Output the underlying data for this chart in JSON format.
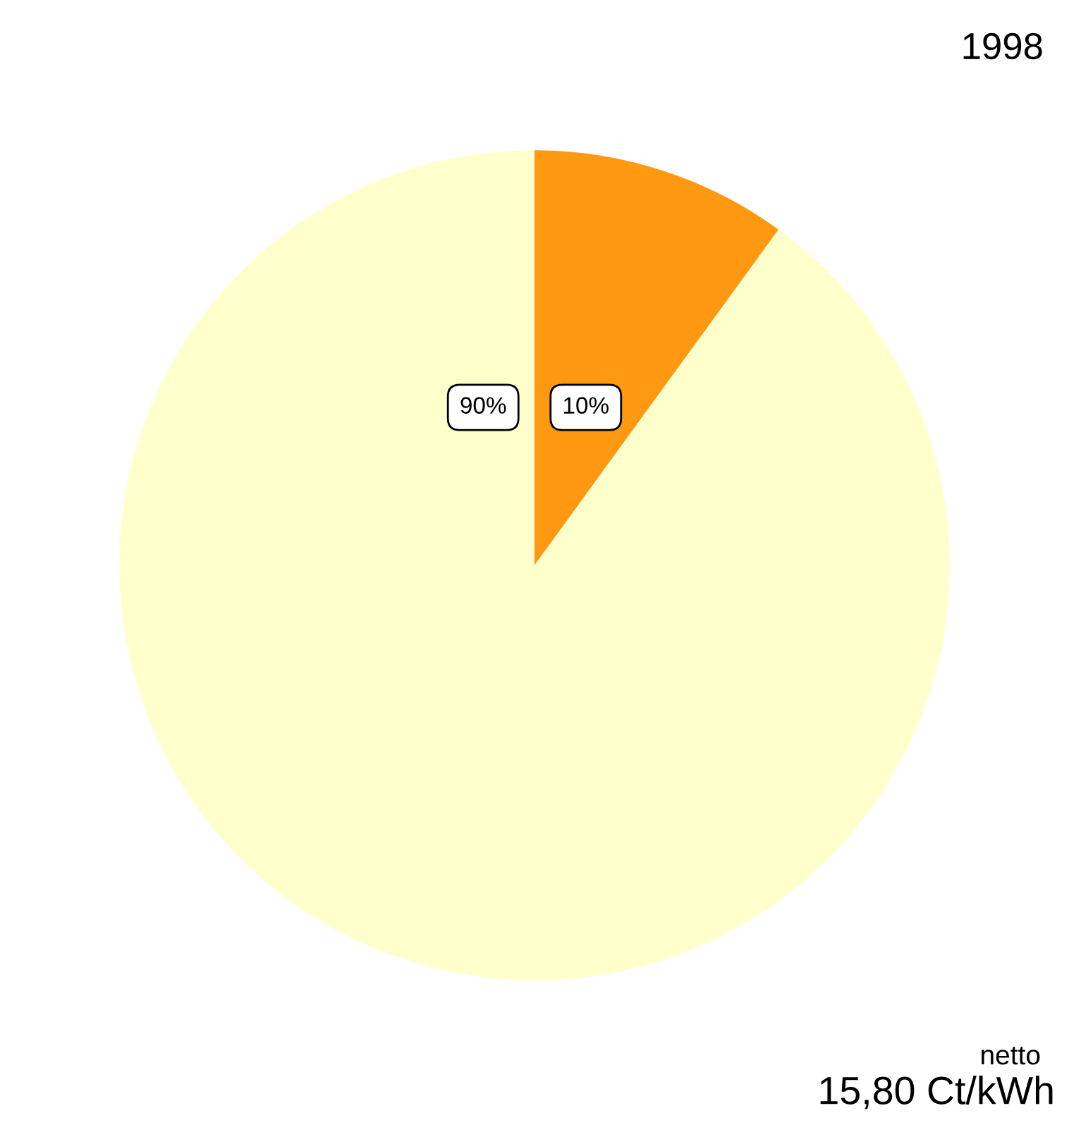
{
  "chart_data": {
    "type": "pie",
    "title": "1998",
    "categories": [
      null,
      null
    ],
    "values": [
      10,
      90
    ],
    "colors": [
      "#ff9912",
      "#ffffcc"
    ],
    "value_labels": [
      "10%",
      "90%"
    ],
    "annotations": [
      "netto",
      "15,80 Ct/kWh"
    ]
  }
}
